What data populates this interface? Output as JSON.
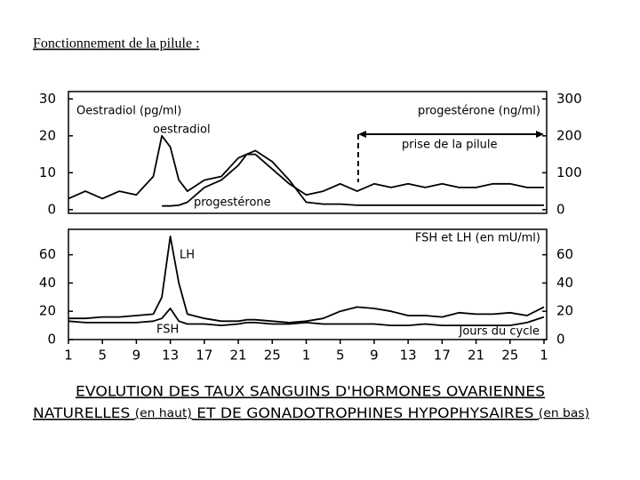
{
  "title": "Fonctionnement de la pilule :",
  "caption": {
    "line1": "EVOLUTION DES TAUX SANGUINS D'HORMONES OVARIENNES",
    "line2": [
      "NATURELLES ",
      "(en haut)",
      " ET DE GONADOTROPHINES HYPOPHYSAIRES ",
      "(en bas)"
    ]
  },
  "chart_data": [
    {
      "type": "line",
      "ylabel": "Oestradiol (pg/ml)",
      "y2label": "progestérone (ng/ml)",
      "annotation": "prise de la pilule",
      "x": [
        1,
        3,
        5,
        7,
        9,
        11,
        12,
        13,
        14,
        15,
        17,
        19,
        21,
        22,
        23,
        25,
        27,
        29,
        31,
        33,
        35,
        37,
        39,
        41,
        43,
        45,
        47,
        49,
        51,
        53,
        55,
        57
      ],
      "xlim": [
        1,
        57
      ],
      "ylim": [
        -1,
        32
      ],
      "yticks": [
        0,
        10,
        20,
        30
      ],
      "y2lim": [
        -10,
        320
      ],
      "y2ticks": [
        0,
        100,
        200,
        300
      ],
      "series": [
        {
          "name": "oestradiol",
          "color": "#000000",
          "values": [
            3,
            5,
            3,
            5,
            4,
            9,
            20,
            17,
            8,
            5,
            8,
            9,
            14,
            15,
            15,
            11,
            7,
            4,
            5,
            7,
            5,
            7,
            6,
            7,
            6,
            7,
            6,
            6,
            7,
            7,
            6,
            6
          ]
        },
        {
          "name": "progestérone",
          "color": "#000000",
          "axis": "y2",
          "values": [
            null,
            null,
            null,
            null,
            null,
            null,
            10,
            10,
            12,
            20,
            60,
            80,
            120,
            150,
            160,
            130,
            80,
            20,
            15,
            15,
            12,
            12,
            12,
            12,
            12,
            12,
            12,
            12,
            12,
            12,
            12,
            12
          ]
        }
      ]
    },
    {
      "type": "line",
      "ylabel": "FSH et LH (en mU/ml)",
      "xlabel": "Jours du cycle",
      "x": [
        1,
        3,
        5,
        7,
        9,
        11,
        12,
        13,
        14,
        15,
        17,
        19,
        21,
        22,
        23,
        25,
        27,
        29,
        31,
        33,
        35,
        37,
        39,
        41,
        43,
        45,
        47,
        49,
        51,
        53,
        55,
        57
      ],
      "xlim": [
        1,
        57
      ],
      "xticks": [
        {
          "value": 1,
          "label": "1"
        },
        {
          "value": 5,
          "label": "5"
        },
        {
          "value": 9,
          "label": "9"
        },
        {
          "value": 13,
          "label": "13"
        },
        {
          "value": 17,
          "label": "17"
        },
        {
          "value": 21,
          "label": "21"
        },
        {
          "value": 25,
          "label": "25"
        },
        {
          "value": 29,
          "label": "1"
        },
        {
          "value": 33,
          "label": "5"
        },
        {
          "value": 37,
          "label": "9"
        },
        {
          "value": 41,
          "label": "13"
        },
        {
          "value": 45,
          "label": "17"
        },
        {
          "value": 49,
          "label": "21"
        },
        {
          "value": 53,
          "label": "25"
        },
        {
          "value": 57,
          "label": "1"
        }
      ],
      "ylim": [
        0,
        78
      ],
      "yticks": [
        0,
        20,
        40,
        60
      ],
      "y2lim": [
        0,
        78
      ],
      "y2ticks": [
        0,
        20,
        40,
        60
      ],
      "series": [
        {
          "name": "LH",
          "color": "#000000",
          "values": [
            15,
            15,
            16,
            16,
            17,
            18,
            30,
            73,
            40,
            18,
            15,
            13,
            13,
            14,
            14,
            13,
            12,
            13,
            15,
            20,
            23,
            22,
            20,
            17,
            17,
            16,
            19,
            18,
            18,
            19,
            17,
            23
          ]
        },
        {
          "name": "FSH",
          "color": "#000000",
          "values": [
            13,
            12,
            12,
            12,
            12,
            13,
            15,
            22,
            13,
            11,
            11,
            10,
            11,
            12,
            12,
            11,
            11,
            12,
            11,
            11,
            11,
            11,
            10,
            10,
            11,
            10,
            10,
            10,
            10,
            10,
            12,
            16
          ]
        }
      ]
    }
  ]
}
